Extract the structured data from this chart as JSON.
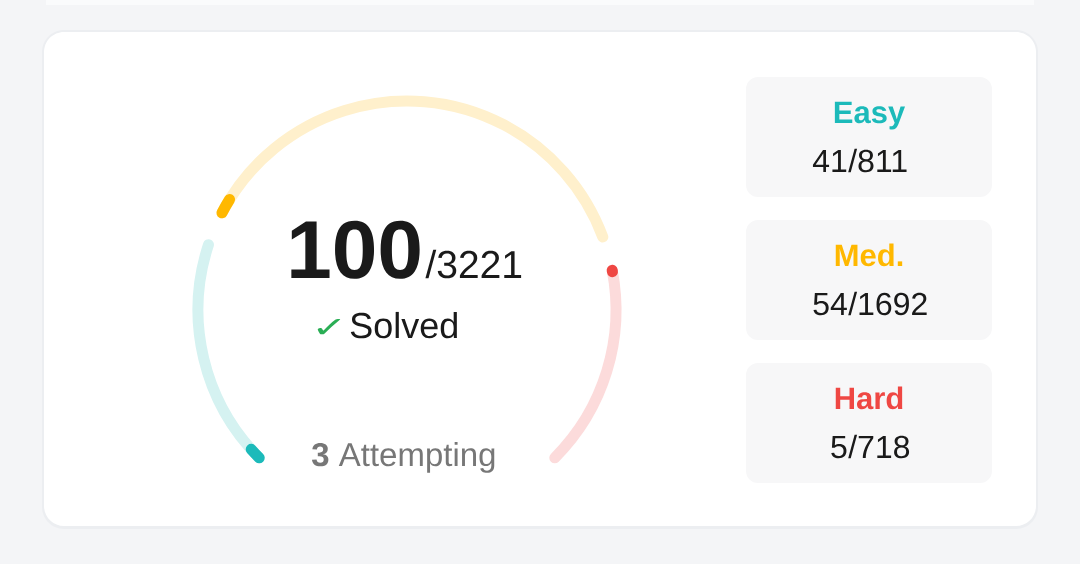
{
  "chart_data": {
    "type": "other",
    "categories": [
      "Easy",
      "Med.",
      "Hard"
    ],
    "series": [
      {
        "values": [
          41,
          54,
          5
        ],
        "colors": [
          "#1cbaba",
          "#ffb800",
          "#ef4743"
        ],
        "value_labels": [
          "41",
          "54",
          "5"
        ]
      },
      {
        "values": [
          811,
          1692,
          718
        ],
        "colors": [
          "#d5f2f1",
          "#fff0cc",
          "#fcdbdb"
        ],
        "value_labels": [
          "/811",
          "/1692",
          "/718"
        ]
      }
    ],
    "annotations": [
      "100",
      "/3221",
      "✓",
      "Solved",
      "**3** Attempting"
    ]
  }
}
